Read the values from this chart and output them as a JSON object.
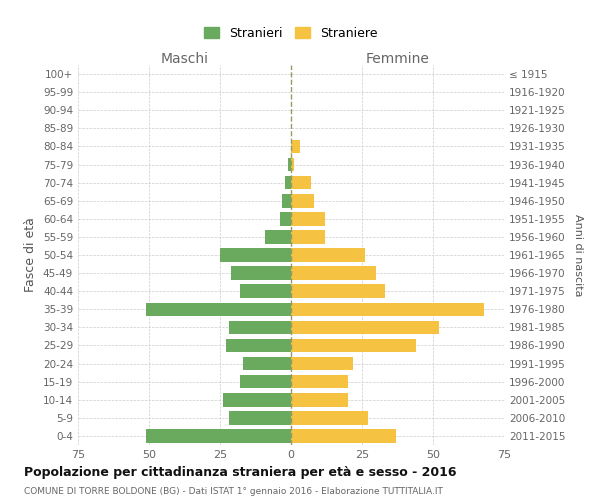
{
  "age_groups": [
    "100+",
    "95-99",
    "90-94",
    "85-89",
    "80-84",
    "75-79",
    "70-74",
    "65-69",
    "60-64",
    "55-59",
    "50-54",
    "45-49",
    "40-44",
    "35-39",
    "30-34",
    "25-29",
    "20-24",
    "15-19",
    "10-14",
    "5-9",
    "0-4"
  ],
  "birth_years": [
    "≤ 1915",
    "1916-1920",
    "1921-1925",
    "1926-1930",
    "1931-1935",
    "1936-1940",
    "1941-1945",
    "1946-1950",
    "1951-1955",
    "1956-1960",
    "1961-1965",
    "1966-1970",
    "1971-1975",
    "1976-1980",
    "1981-1985",
    "1986-1990",
    "1991-1995",
    "1996-2000",
    "2001-2005",
    "2006-2010",
    "2011-2015"
  ],
  "maschi": [
    0,
    0,
    0,
    0,
    0,
    1,
    2,
    3,
    4,
    9,
    25,
    21,
    18,
    51,
    22,
    23,
    17,
    18,
    24,
    22,
    51
  ],
  "femmine": [
    0,
    0,
    0,
    0,
    3,
    1,
    7,
    8,
    12,
    12,
    26,
    30,
    33,
    68,
    52,
    44,
    22,
    20,
    20,
    27,
    37
  ],
  "male_color": "#6aaa5e",
  "female_color": "#f5c242",
  "grid_color": "#cccccc",
  "dashed_line_color": "#999966",
  "title": "Popolazione per cittadinanza straniera per età e sesso - 2016",
  "subtitle": "COMUNE DI TORRE BOLDONE (BG) - Dati ISTAT 1° gennaio 2016 - Elaborazione TUTTITALIA.IT",
  "ylabel_left": "Fasce di età",
  "ylabel_right": "Anni di nascita",
  "xlabel_left": "Maschi",
  "xlabel_right": "Femmine",
  "legend_male": "Stranieri",
  "legend_female": "Straniere",
  "xlim": 75
}
